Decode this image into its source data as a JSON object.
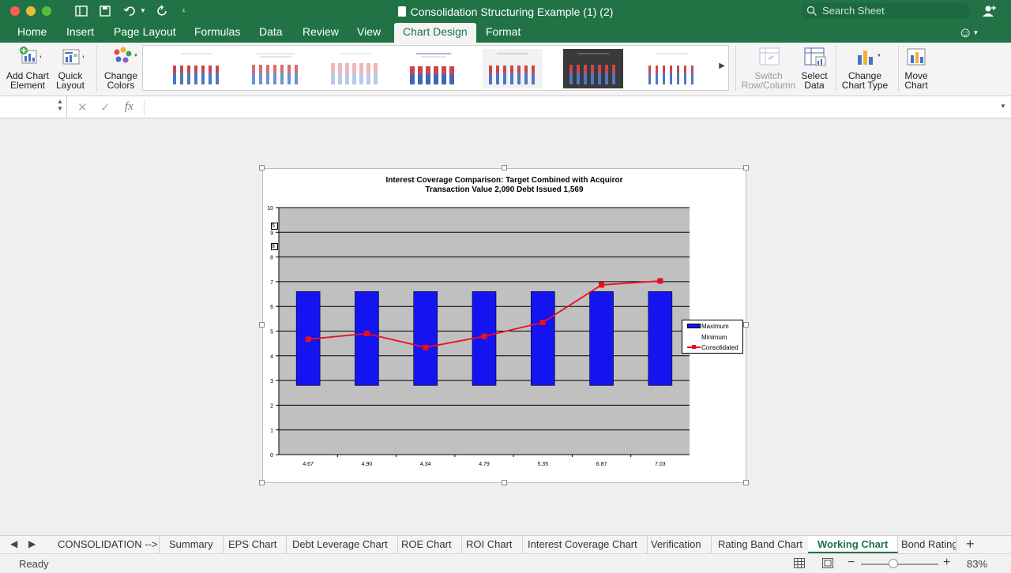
{
  "window": {
    "title": "Consolidation Structuring Example (1) (2)",
    "search_placeholder": "Search Sheet"
  },
  "ribbon_tabs": [
    "Home",
    "Insert",
    "Page Layout",
    "Formulas",
    "Data",
    "Review",
    "View",
    "Chart Design",
    "Format"
  ],
  "active_ribbon_tab": "Chart Design",
  "ribbon": {
    "add_chart_element": [
      "Add Chart",
      "Element"
    ],
    "quick_layout": [
      "Quick",
      "Layout"
    ],
    "change_colors": [
      "Change",
      "Colors"
    ],
    "switch_row_column": [
      "Switch",
      "Row/Column"
    ],
    "select_data": [
      "Select",
      "Data"
    ],
    "change_chart_type": [
      "Change",
      "Chart Type"
    ],
    "move_chart": [
      "Move",
      "Chart"
    ]
  },
  "formula_bar": {
    "fx": "fx"
  },
  "chart_data": {
    "type": "bar",
    "title": "Interest Coverage Comparison: Target Combined with Acquiror",
    "subtitle": "Transaction Value 2,090 Debt Issued 1,569",
    "categories": [
      "4.67",
      "4.90",
      "4.34",
      "4.79",
      "5.35",
      "6.87",
      "7.03"
    ],
    "ylim": [
      0,
      10
    ],
    "yticks": [
      "0",
      "1",
      "2",
      "3",
      "4",
      "5",
      "6",
      "7",
      "8",
      "9",
      "10"
    ],
    "series": [
      {
        "name": "Maximum",
        "type": "bar",
        "values": [
          6.6,
          6.6,
          6.6,
          6.6,
          6.6,
          6.6,
          6.6
        ],
        "color": "#1414f0"
      },
      {
        "name": "Minimum",
        "type": "bar",
        "values": [
          2.8,
          2.8,
          2.8,
          2.8,
          2.8,
          2.8,
          2.8
        ],
        "color": "#c0c0c0"
      },
      {
        "name": "Consolidated",
        "type": "line",
        "values": [
          4.67,
          4.9,
          4.34,
          4.79,
          5.35,
          6.87,
          7.03
        ],
        "color": "#e8101e"
      }
    ],
    "grid": true,
    "plot_background": "#c0c0c0",
    "legend_position": "right"
  },
  "sheet_tabs": [
    "CONSOLIDATION -->",
    "Summary",
    "EPS Chart",
    "Debt Leverage Chart",
    "ROE Chart",
    "ROI Chart",
    "Interest Coverage Chart",
    "Verification",
    "Rating Band Chart",
    "Working Chart",
    "Bond Rating"
  ],
  "active_sheet_tab": "Working Chart",
  "status": {
    "text": "Ready",
    "zoom": "83%"
  },
  "colors": {
    "accent": "#217346"
  }
}
